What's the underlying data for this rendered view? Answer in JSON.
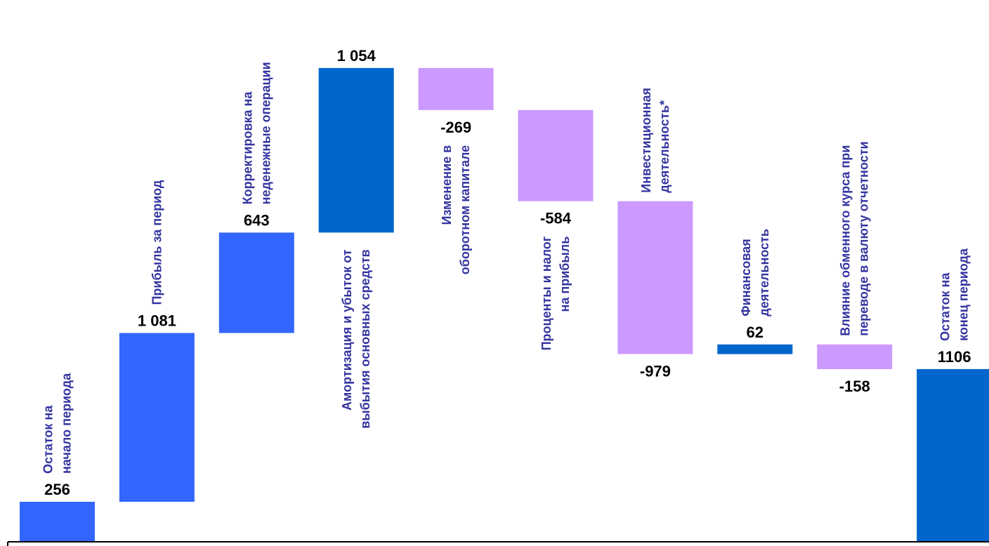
{
  "chart_data": {
    "type": "bar",
    "subtype": "waterfall",
    "title": "",
    "xlabel": "",
    "ylabel": "",
    "grid": false,
    "legend": "none",
    "categories": [
      [
        "Остаток на",
        "начало периода"
      ],
      [
        "Прибыль за период"
      ],
      [
        "Корректировка на",
        "неденежные операции"
      ],
      [
        "Амортизация и убыток от",
        "выбытия основных средств"
      ],
      [
        "Изменение в",
        "оборотном капитале"
      ],
      [
        "Проценты и налог",
        "на прибыль"
      ],
      [
        "Инвестиционная",
        "деятельность*"
      ],
      [
        "Финансовая",
        "деятельность"
      ],
      [
        "Влияние обменного курса при",
        "переводе в валюту отчетности"
      ],
      [
        "Остаток на",
        "конец периода"
      ]
    ],
    "values": [
      256,
      1081,
      643,
      1054,
      -269,
      -584,
      -979,
      62,
      -158,
      1106
    ],
    "value_labels": [
      "256",
      "1 081",
      "643",
      "1 054",
      "-269",
      "-584",
      "-979",
      "62",
      "-158",
      "1106"
    ],
    "bar_kinds": [
      "total",
      "delta",
      "delta",
      "delta",
      "delta",
      "delta",
      "delta",
      "delta",
      "delta",
      "total"
    ],
    "colors": {
      "positive_bright": "#3366ff",
      "positive_dark": "#0066cc",
      "negative": "#cc99ff",
      "category_text": "#3333a0",
      "value_text": "#000000",
      "axis": "#000000"
    },
    "bar_colors": [
      "#3366ff",
      "#3366ff",
      "#3366ff",
      "#0066cc",
      "#cc99ff",
      "#cc99ff",
      "#cc99ff",
      "#0066cc",
      "#cc99ff",
      "#0066cc"
    ]
  }
}
